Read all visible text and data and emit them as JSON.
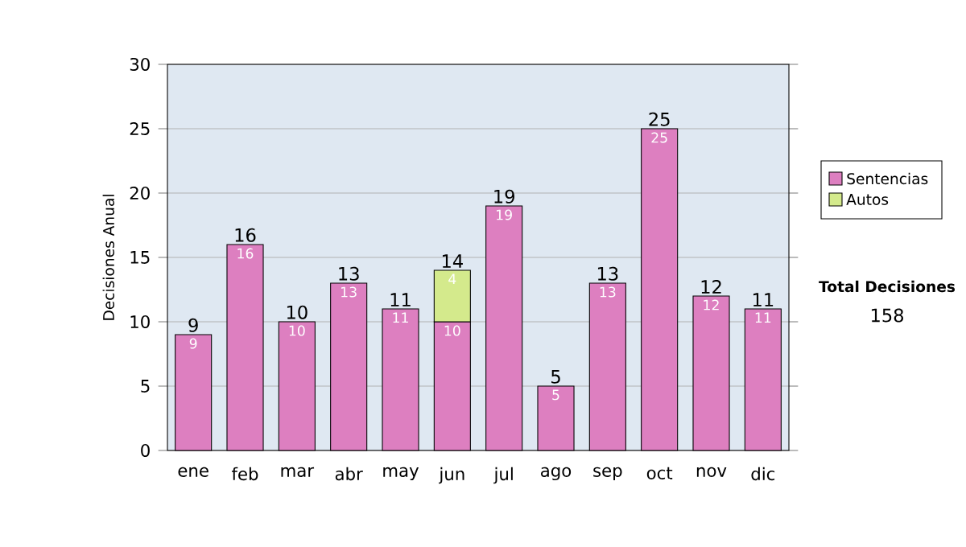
{
  "chart_data": {
    "type": "bar",
    "stacked": true,
    "ylabel": "Decisiones Anual",
    "categories": [
      "ene",
      "feb",
      "mar",
      "abr",
      "may",
      "jun",
      "jul",
      "ago",
      "sep",
      "oct",
      "nov",
      "dic"
    ],
    "series": [
      {
        "name": "Sentencias",
        "color": "#dd7fc0",
        "values": [
          9,
          16,
          10,
          13,
          11,
          10,
          19,
          5,
          13,
          25,
          12,
          11
        ]
      },
      {
        "name": "Autos",
        "color": "#d4ea8c",
        "values": [
          null,
          null,
          null,
          null,
          null,
          4,
          null,
          null,
          null,
          null,
          null,
          null
        ]
      }
    ],
    "totals": [
      "9",
      "16",
      "10",
      "13",
      "11",
      "14",
      "19",
      "5",
      "13",
      "25",
      "12",
      "11"
    ],
    "data_labels": true,
    "ylim": [
      0,
      30
    ],
    "yticks": [
      0,
      5,
      10,
      15,
      20,
      25,
      30
    ],
    "grid": "y",
    "legend": "right",
    "annotations": [
      "Total Decisiones",
      "158"
    ]
  }
}
